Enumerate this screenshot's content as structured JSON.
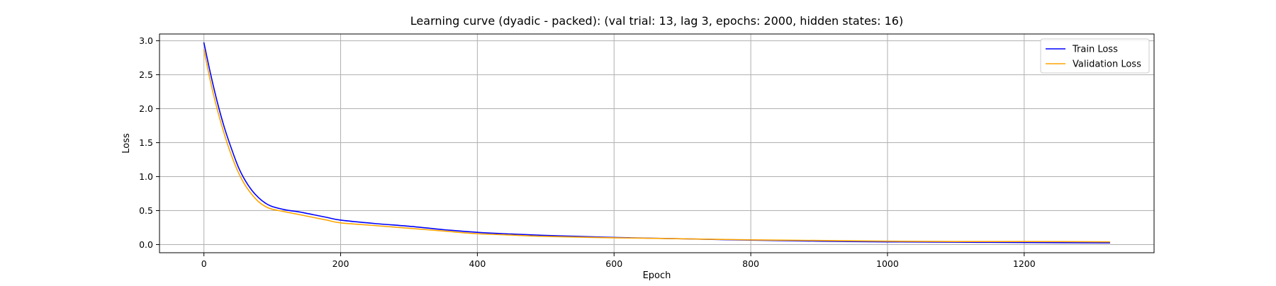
{
  "chart_data": {
    "type": "line",
    "title": "Learning curve (dyadic - packed): (val trial: 13, lag 3, epochs: 2000, hidden states: 16)",
    "xlabel": "Epoch",
    "ylabel": "Loss",
    "xlim": [
      -65,
      1390
    ],
    "ylim": [
      -0.12,
      3.1
    ],
    "xticks": [
      0,
      200,
      400,
      600,
      800,
      1000,
      1200
    ],
    "yticks": [
      0.0,
      0.5,
      1.0,
      1.5,
      2.0,
      2.5,
      3.0
    ],
    "xtick_labels": [
      "0",
      "200",
      "400",
      "600",
      "800",
      "1000",
      "1200"
    ],
    "ytick_labels": [
      "0.0",
      "0.5",
      "1.0",
      "1.5",
      "2.0",
      "2.5",
      "3.0"
    ],
    "grid": true,
    "legend_position": "top-right",
    "colors": {
      "train": "#0000ff",
      "validation": "#ffa500",
      "grid": "#b0b0b0",
      "frame": "#000000"
    },
    "series": [
      {
        "name": "Train Loss",
        "color": "#0000ff",
        "x": [
          0,
          10,
          20,
          30,
          40,
          50,
          60,
          70,
          80,
          90,
          100,
          120,
          140,
          160,
          180,
          200,
          250,
          300,
          350,
          400,
          450,
          500,
          600,
          700,
          800,
          900,
          1000,
          1100,
          1200,
          1325
        ],
        "y": [
          2.97,
          2.5,
          2.08,
          1.72,
          1.42,
          1.15,
          0.95,
          0.8,
          0.69,
          0.61,
          0.56,
          0.51,
          0.48,
          0.44,
          0.4,
          0.36,
          0.31,
          0.27,
          0.22,
          0.18,
          0.155,
          0.135,
          0.105,
          0.085,
          0.065,
          0.05,
          0.04,
          0.035,
          0.03,
          0.025
        ]
      },
      {
        "name": "Validation Loss",
        "color": "#ffa500",
        "x": [
          0,
          10,
          20,
          30,
          40,
          50,
          60,
          70,
          80,
          90,
          100,
          120,
          140,
          160,
          180,
          200,
          250,
          300,
          350,
          400,
          450,
          500,
          600,
          700,
          800,
          900,
          1000,
          1100,
          1200,
          1325
        ],
        "y": [
          2.87,
          2.38,
          1.97,
          1.62,
          1.32,
          1.07,
          0.88,
          0.74,
          0.63,
          0.56,
          0.52,
          0.48,
          0.44,
          0.4,
          0.36,
          0.32,
          0.28,
          0.24,
          0.2,
          0.16,
          0.14,
          0.12,
          0.1,
          0.085,
          0.07,
          0.06,
          0.05,
          0.045,
          0.045,
          0.04
        ]
      }
    ]
  }
}
